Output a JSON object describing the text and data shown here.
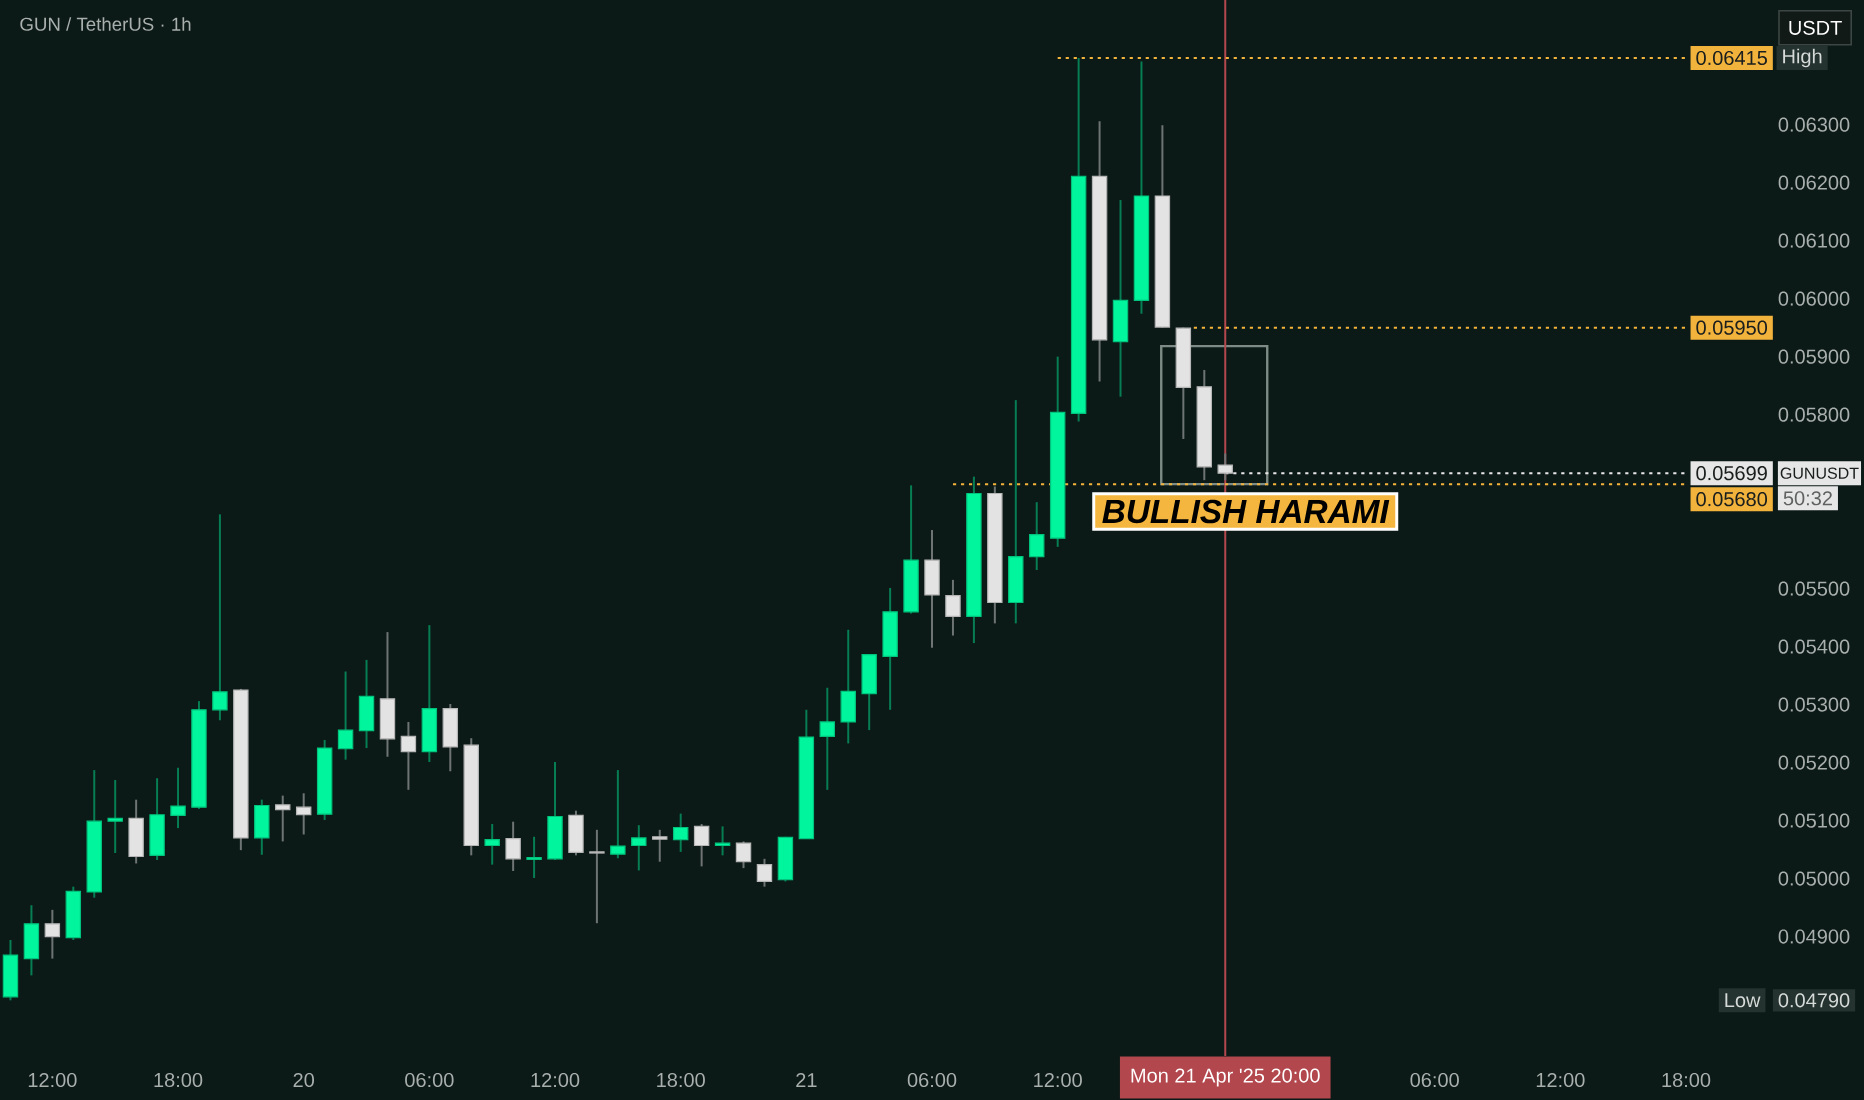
{
  "chart_data": {
    "type": "candlestick",
    "title": "GUN / TetherUS · 1h",
    "ylabel": "USDT",
    "xlim": [
      "2025-04-19T09:30",
      "2025-04-22T18:00"
    ],
    "xticks": [
      {
        "value": "2025-04-19T12:00",
        "label": "12:00"
      },
      {
        "value": "2025-04-19T18:00",
        "label": "18:00"
      },
      {
        "value": "2025-04-20T00:00",
        "label": "20"
      },
      {
        "value": "2025-04-20T06:00",
        "label": "06:00"
      },
      {
        "value": "2025-04-20T12:00",
        "label": "12:00"
      },
      {
        "value": "2025-04-20T18:00",
        "label": "18:00"
      },
      {
        "value": "2025-04-21T00:00",
        "label": "21"
      },
      {
        "value": "2025-04-21T06:00",
        "label": "06:00"
      },
      {
        "value": "2025-04-21T12:00",
        "label": "12:00"
      },
      {
        "value": "2025-04-22T06:00",
        "label": "06:00"
      },
      {
        "value": "2025-04-22T12:00",
        "label": "12:00"
      },
      {
        "value": "2025-04-22T18:00",
        "label": "18:00"
      }
    ],
    "ylim": [
      0.04694,
      0.06515
    ],
    "yticks": [
      {
        "value": 0.0479,
        "label": "0.04790"
      },
      {
        "value": 0.049,
        "label": "0.04900"
      },
      {
        "value": 0.05,
        "label": "0.05000"
      },
      {
        "value": 0.051,
        "label": "0.05100"
      },
      {
        "value": 0.052,
        "label": "0.05200"
      },
      {
        "value": 0.053,
        "label": "0.05300"
      },
      {
        "value": 0.054,
        "label": "0.05400"
      },
      {
        "value": 0.055,
        "label": "0.05500"
      },
      {
        "value": 0.058,
        "label": "0.05800"
      },
      {
        "value": 0.059,
        "label": "0.05900"
      },
      {
        "value": 0.06,
        "label": "0.06000"
      },
      {
        "value": 0.061,
        "label": "0.06100"
      },
      {
        "value": 0.062,
        "label": "0.06200"
      },
      {
        "value": 0.063,
        "label": "0.06300"
      }
    ],
    "series": [
      {
        "x": [
          "2025-04-19T10:00",
          "2025-04-19T11:00",
          "2025-04-19T12:00",
          "2025-04-19T13:00",
          "2025-04-19T14:00",
          "2025-04-19T15:00",
          "2025-04-19T16:00",
          "2025-04-19T17:00",
          "2025-04-19T18:00",
          "2025-04-19T19:00",
          "2025-04-19T20:00",
          "2025-04-19T21:00",
          "2025-04-19T22:00",
          "2025-04-19T23:00",
          "2025-04-20T00:00",
          "2025-04-20T01:00",
          "2025-04-20T02:00",
          "2025-04-20T03:00",
          "2025-04-20T04:00",
          "2025-04-20T05:00",
          "2025-04-20T06:00",
          "2025-04-20T07:00",
          "2025-04-20T08:00",
          "2025-04-20T09:00",
          "2025-04-20T10:00",
          "2025-04-20T11:00",
          "2025-04-20T12:00",
          "2025-04-20T13:00",
          "2025-04-20T14:00",
          "2025-04-20T15:00",
          "2025-04-20T16:00",
          "2025-04-20T17:00",
          "2025-04-20T18:00",
          "2025-04-20T19:00",
          "2025-04-20T20:00",
          "2025-04-20T21:00",
          "2025-04-20T22:00",
          "2025-04-20T23:00",
          "2025-04-21T00:00",
          "2025-04-21T01:00",
          "2025-04-21T02:00",
          "2025-04-21T03:00",
          "2025-04-21T04:00",
          "2025-04-21T05:00",
          "2025-04-21T06:00",
          "2025-04-21T07:00",
          "2025-04-21T08:00",
          "2025-04-21T09:00",
          "2025-04-21T10:00",
          "2025-04-21T11:00",
          "2025-04-21T12:00",
          "2025-04-21T13:00",
          "2025-04-21T14:00",
          "2025-04-21T15:00",
          "2025-04-21T16:00",
          "2025-04-21T17:00",
          "2025-04-21T18:00",
          "2025-04-21T19:00",
          "2025-04-21T20:00"
        ],
        "ohlc": [
          [
            0.04796,
            0.04894,
            0.0479,
            0.04868
          ],
          [
            0.04862,
            0.04954,
            0.04833,
            0.04922
          ],
          [
            0.04922,
            0.04946,
            0.04862,
            0.049
          ],
          [
            0.04898,
            0.04986,
            0.04894,
            0.04978
          ],
          [
            0.04977,
            0.05187,
            0.04967,
            0.05099
          ],
          [
            0.05099,
            0.0517,
            0.05044,
            0.05104
          ],
          [
            0.05104,
            0.05136,
            0.05026,
            0.05038
          ],
          [
            0.0504,
            0.05173,
            0.05032,
            0.0511
          ],
          [
            0.05109,
            0.05191,
            0.05087,
            0.05125
          ],
          [
            0.05123,
            0.05306,
            0.0512,
            0.05291
          ],
          [
            0.05291,
            0.05628,
            0.05273,
            0.05322
          ],
          [
            0.05325,
            0.05327,
            0.05049,
            0.0507
          ],
          [
            0.0507,
            0.05136,
            0.05041,
            0.05126
          ],
          [
            0.05127,
            0.05143,
            0.05064,
            0.05119
          ],
          [
            0.05123,
            0.05147,
            0.05076,
            0.0511
          ],
          [
            0.05111,
            0.05239,
            0.05101,
            0.05225
          ],
          [
            0.05224,
            0.05357,
            0.05205,
            0.05256
          ],
          [
            0.05255,
            0.05377,
            0.05225,
            0.05314
          ],
          [
            0.0531,
            0.05425,
            0.0521,
            0.05241
          ],
          [
            0.05245,
            0.0527,
            0.05153,
            0.05219
          ],
          [
            0.05219,
            0.05437,
            0.05201,
            0.05293
          ],
          [
            0.05293,
            0.05301,
            0.05185,
            0.05227
          ],
          [
            0.0523,
            0.05242,
            0.0504,
            0.05057
          ],
          [
            0.05057,
            0.05094,
            0.05024,
            0.05067
          ],
          [
            0.05069,
            0.05098,
            0.05013,
            0.05034
          ],
          [
            0.05033,
            0.05072,
            0.05001,
            0.05036
          ],
          [
            0.05034,
            0.05201,
            0.05032,
            0.05107
          ],
          [
            0.05109,
            0.05117,
            0.0504,
            0.05045
          ],
          [
            0.05046,
            0.05084,
            0.04923,
            0.05044
          ],
          [
            0.05042,
            0.05187,
            0.05035,
            0.05056
          ],
          [
            0.05057,
            0.05092,
            0.05014,
            0.0507
          ],
          [
            0.05072,
            0.05084,
            0.05029,
            0.05068
          ],
          [
            0.05067,
            0.05112,
            0.05046,
            0.05088
          ],
          [
            0.0509,
            0.05094,
            0.05021,
            0.05057
          ],
          [
            0.05057,
            0.0509,
            0.0504,
            0.05061
          ],
          [
            0.05061,
            0.05064,
            0.05018,
            0.05029
          ],
          [
            0.05024,
            0.05034,
            0.04986,
            0.04995
          ],
          [
            0.04998,
            0.05072,
            0.04995,
            0.05071
          ],
          [
            0.05069,
            0.05291,
            0.05069,
            0.05244
          ],
          [
            0.05245,
            0.05329,
            0.05153,
            0.0527
          ],
          [
            0.0527,
            0.05429,
            0.05233,
            0.05323
          ],
          [
            0.05319,
            0.05386,
            0.05256,
            0.05386
          ],
          [
            0.05383,
            0.05501,
            0.05291,
            0.0546
          ],
          [
            0.0546,
            0.05678,
            0.05457,
            0.05549
          ],
          [
            0.05549,
            0.05601,
            0.05398,
            0.05489
          ],
          [
            0.05488,
            0.05515,
            0.05419,
            0.05452
          ],
          [
            0.05452,
            0.05693,
            0.05406,
            0.05664
          ],
          [
            0.05664,
            0.05676,
            0.0544,
            0.05476
          ],
          [
            0.05476,
            0.05825,
            0.0544,
            0.05555
          ],
          [
            0.05555,
            0.05649,
            0.05532,
            0.05593
          ],
          [
            0.05587,
            0.059,
            0.05572,
            0.05804
          ],
          [
            0.05802,
            0.06415,
            0.05788,
            0.06211
          ],
          [
            0.06211,
            0.06306,
            0.05857,
            0.05929
          ],
          [
            0.05926,
            0.0617,
            0.05831,
            0.05997
          ],
          [
            0.05997,
            0.06409,
            0.05974,
            0.06177
          ],
          [
            0.06177,
            0.06299,
            0.0595,
            0.05951
          ],
          [
            0.05949,
            0.0595,
            0.05758,
            0.05847
          ],
          [
            0.05848,
            0.05877,
            0.05687,
            0.0571
          ],
          [
            0.05713,
            0.05733,
            0.05687,
            0.05699
          ]
        ],
        "colors": [
          "#00f59c",
          "#00f59c",
          "#e3e3e3",
          "#00f59c",
          "#00f59c",
          "#00f59c",
          "#e3e3e3",
          "#00f59c",
          "#00f59c",
          "#00f59c",
          "#00f59c",
          "#e3e3e3",
          "#00f59c",
          "#e3e3e3",
          "#e3e3e3",
          "#00f59c",
          "#00f59c",
          "#00f59c",
          "#e3e3e3",
          "#e3e3e3",
          "#00f59c",
          "#e3e3e3",
          "#e3e3e3",
          "#00f59c",
          "#e3e3e3",
          "#00f59c",
          "#00f59c",
          "#e3e3e3",
          "#e3e3e3",
          "#00f59c",
          "#00f59c",
          "#e3e3e3",
          "#00f59c",
          "#e3e3e3",
          "#00f59c",
          "#e3e3e3",
          "#e3e3e3",
          "#00f59c",
          "#00f59c",
          "#00f59c",
          "#00f59c",
          "#00f59c",
          "#00f59c",
          "#00f59c",
          "#e3e3e3",
          "#e3e3e3",
          "#00f59c",
          "#e3e3e3",
          "#00f59c",
          "#00f59c",
          "#00f59c",
          "#00f59c",
          "#e3e3e3",
          "#00f59c",
          "#00f59c",
          "#e3e3e3",
          "#e3e3e3",
          "#e3e3e3",
          "#e3e3e3"
        ]
      },
      {
        "type": "line",
        "name": "GUNUSDT",
        "x": [
          "2025-04-21T20:00",
          "2025-04-22T18:00"
        ],
        "values": [
          0.05699,
          0.05699
        ],
        "color": "#e6e6e6",
        "line_style": "dotted",
        "value_labels": [
          null,
          "0.05699"
        ]
      },
      {
        "type": "line",
        "x": [
          "2025-04-21T12:00",
          "2025-04-22T18:00"
        ],
        "values": [
          0.06415,
          0.06415
        ],
        "color": "#f2b33d",
        "line_style": "dotted",
        "value_labels": [
          null,
          "0.06415"
        ]
      },
      {
        "type": "line",
        "x": [
          "2025-04-21T18:30",
          "2025-04-22T18:00"
        ],
        "values": [
          0.0595,
          0.0595
        ],
        "color": "#f2b33d",
        "line_style": "dotted",
        "value_labels": [
          null,
          "0.05950"
        ]
      },
      {
        "type": "line",
        "x": [
          "2025-04-21T07:00",
          "2025-04-22T18:00"
        ],
        "values": [
          0.0568,
          0.0568
        ],
        "color": "#f2b33d",
        "line_style": "dotted",
        "value_labels": [
          null,
          "0.05680"
        ]
      }
    ],
    "ref_lines": [
      {
        "axis": "x",
        "value": "2025-04-21T20:00",
        "label": "Mon 21 Apr '25 20:00",
        "color": "#b2474d",
        "line_style": "solid"
      }
    ],
    "annotations": [
      {
        "text": "BULLISH HARAMI",
        "x": "2025-04-21T20:00",
        "y": 0.05687
      },
      "High",
      "50:32",
      "Low"
    ]
  }
}
